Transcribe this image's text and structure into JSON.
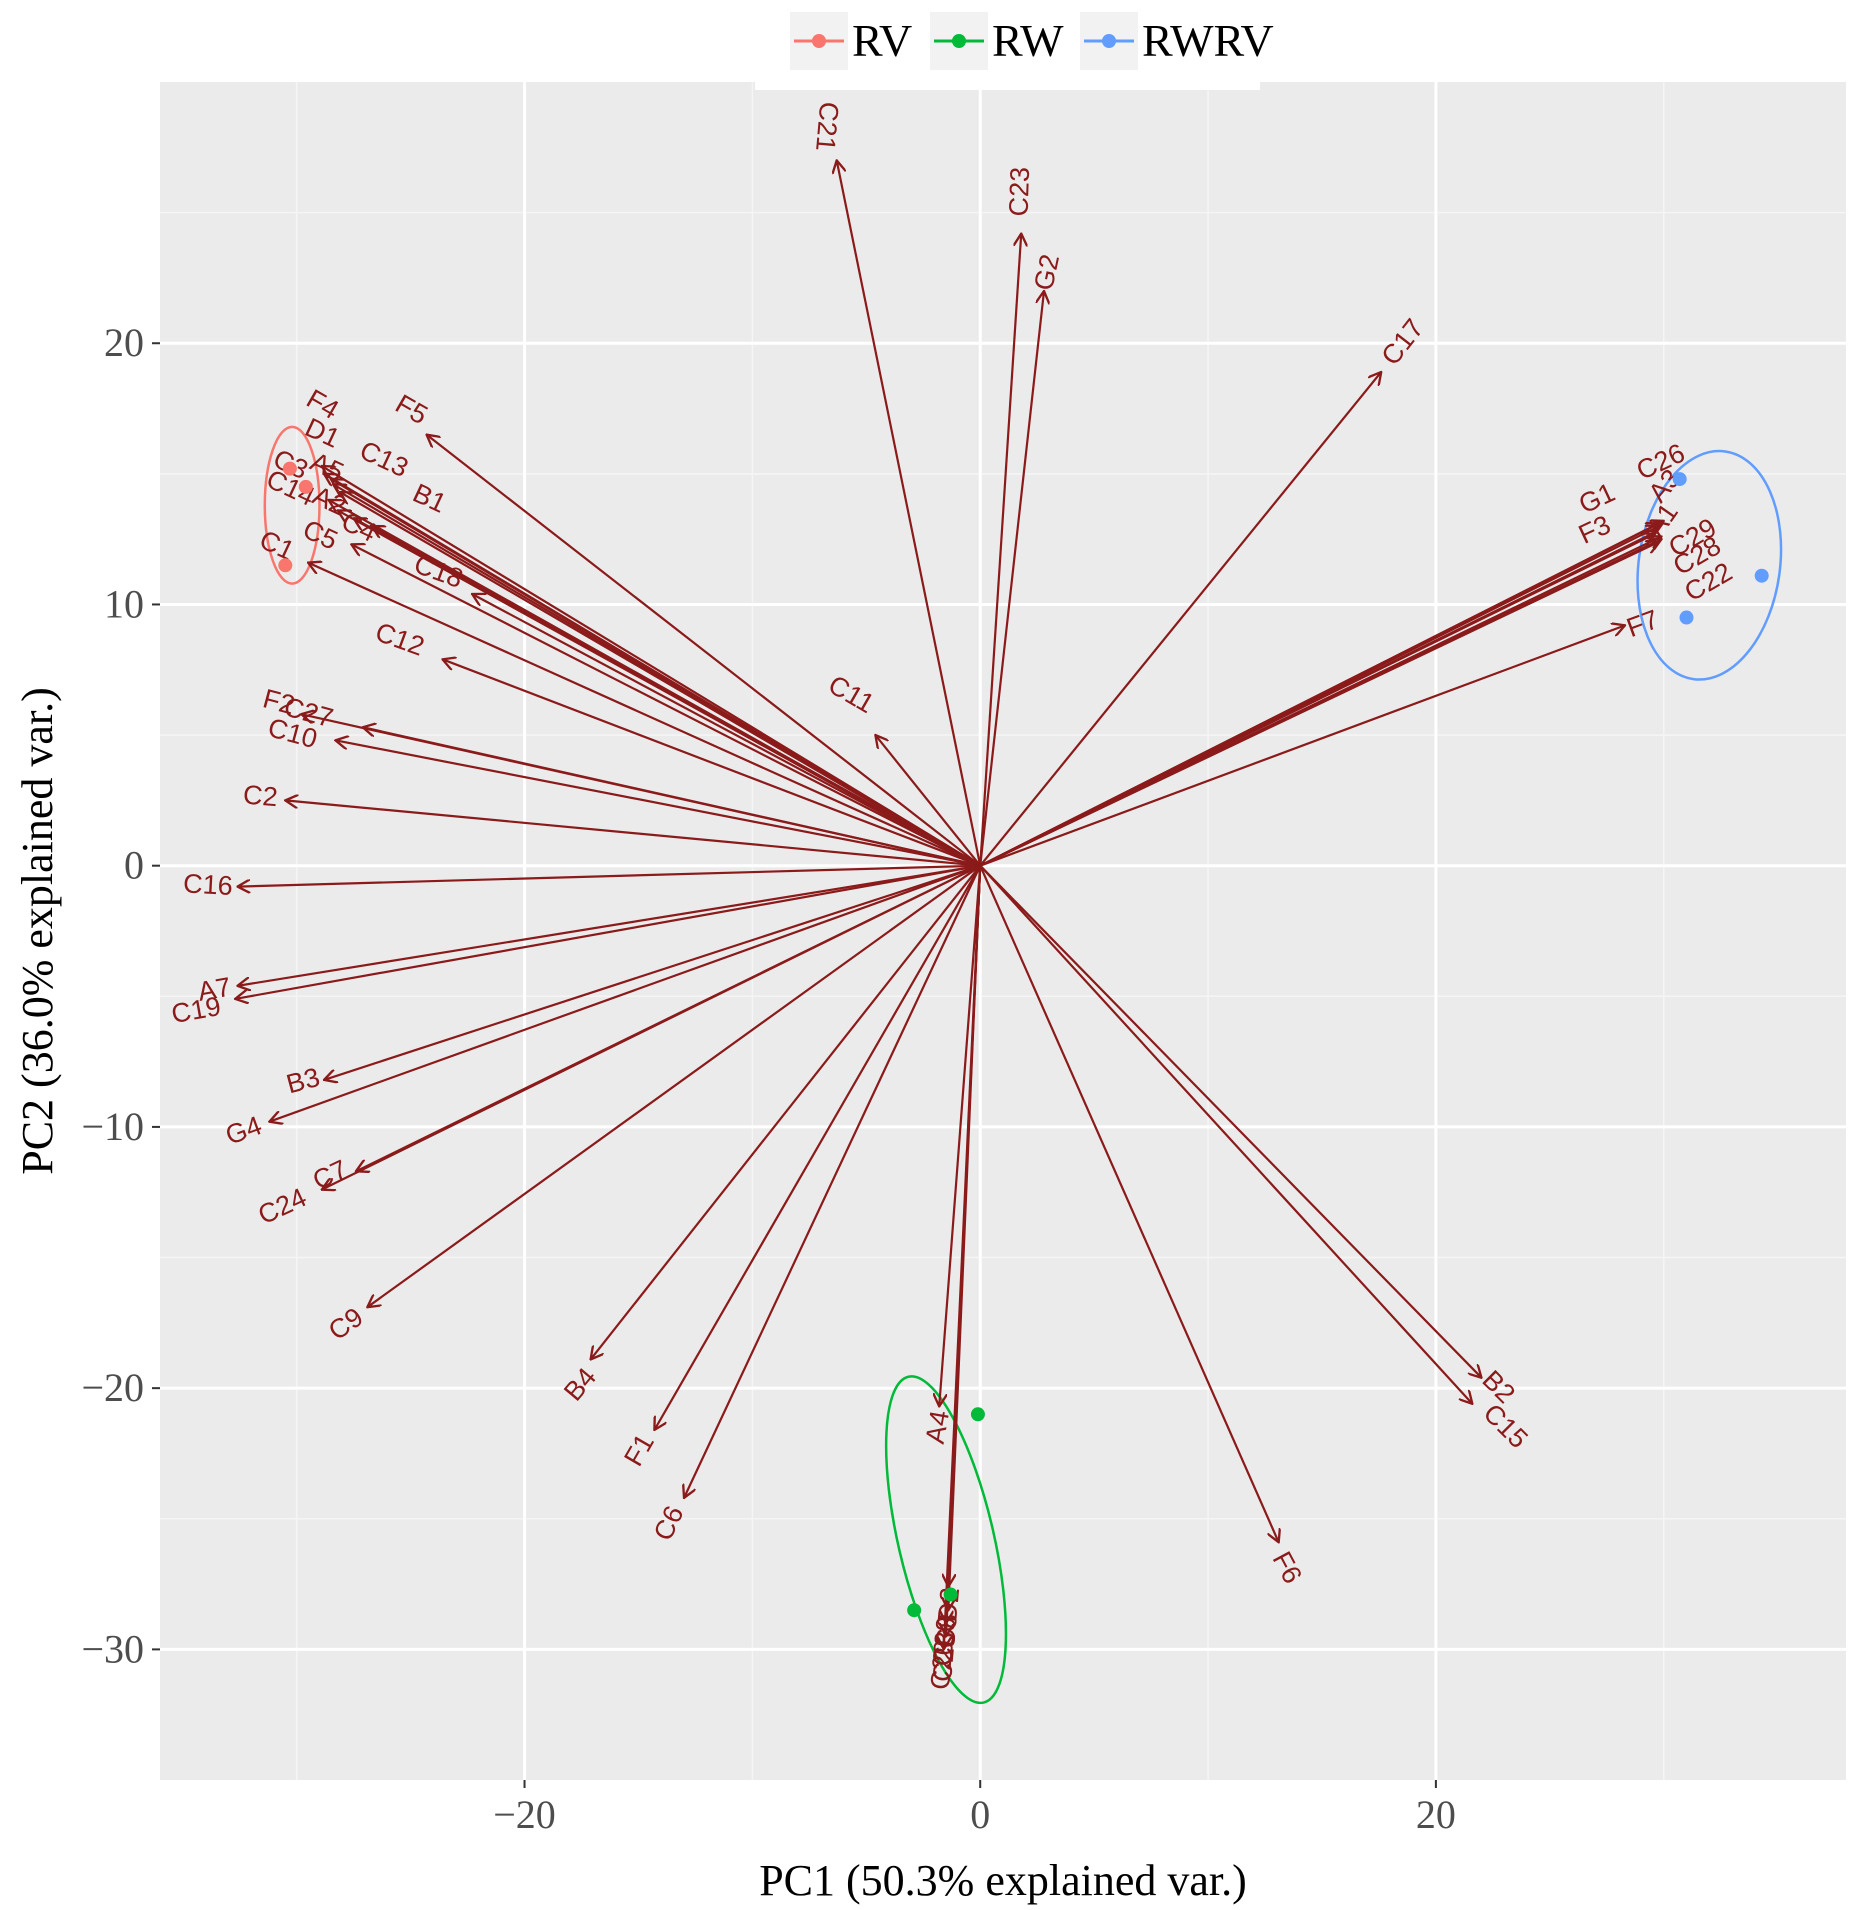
{
  "chart_data": {
    "type": "scatter",
    "subtype": "pca-biplot",
    "xlabel": "PC1 (50.3% explained var.)",
    "ylabel": "PC2 (36.0% explained var.)",
    "xlim": [
      -36,
      38
    ],
    "ylim": [
      -35,
      30
    ],
    "x_ticks": [
      -20,
      0,
      20
    ],
    "x_tick_labels": [
      "−20",
      "0",
      "20"
    ],
    "y_ticks": [
      -30,
      -20,
      -10,
      0,
      10,
      20
    ],
    "y_tick_labels": [
      "−30",
      "−20",
      "−10",
      "0",
      "10",
      "20"
    ],
    "grid": true,
    "legend_position": "top",
    "groups": [
      {
        "name": "RV",
        "color": "#F8766D",
        "points": [
          [
            -30.3,
            15.2
          ],
          [
            -30.5,
            11.5
          ],
          [
            -29.6,
            14.5
          ]
        ],
        "ellipse": {
          "cx": -30.2,
          "cy": 13.8,
          "rx": 1.2,
          "ry": 3.0,
          "angle": 0
        }
      },
      {
        "name": "RW",
        "color": "#00BA38",
        "points": [
          [
            -0.1,
            -21.0
          ],
          [
            -2.9,
            -28.5
          ],
          [
            -1.3,
            -27.9
          ]
        ],
        "ellipse": {
          "cx": -1.5,
          "cy": -25.8,
          "rx": 2.1,
          "ry": 6.4,
          "angle": -13
        }
      },
      {
        "name": "RWRV",
        "color": "#619CFF",
        "points": [
          [
            30.7,
            14.8
          ],
          [
            34.3,
            11.1
          ],
          [
            31.0,
            9.5
          ]
        ],
        "ellipse": {
          "cx": 32.0,
          "cy": 11.5,
          "rx": 3.1,
          "ry": 4.4,
          "angle": 8
        }
      }
    ],
    "arrow_color": "#8B1A1A",
    "vectors": [
      {
        "name": "C21",
        "x": -6.3,
        "y": 27.0,
        "lx": -6.8,
        "ly": 28.3,
        "rot": 95
      },
      {
        "name": "C23",
        "x": 1.8,
        "y": 24.2,
        "lx": 1.8,
        "ly": 25.8,
        "rot": -88
      },
      {
        "name": "G2",
        "x": 2.8,
        "y": 22.0,
        "lx": 3.0,
        "ly": 22.7,
        "rot": -78
      },
      {
        "name": "C17",
        "x": 17.6,
        "y": 18.9,
        "lx": 18.6,
        "ly": 20.0,
        "rot": -52
      },
      {
        "name": "F4",
        "x": -28.9,
        "y": 15.3,
        "lx": -28.9,
        "ly": 17.6,
        "rot": 30
      },
      {
        "name": "F5",
        "x": -24.3,
        "y": 16.5,
        "lx": -25.0,
        "ly": 17.4,
        "rot": 30
      },
      {
        "name": "D1",
        "x": -28.8,
        "y": 15.0,
        "lx": -28.9,
        "ly": 16.5,
        "rot": 25
      },
      {
        "name": "C3",
        "x": -28.5,
        "y": 14.8,
        "lx": -30.3,
        "ly": 15.3,
        "rot": 25
      },
      {
        "name": "A5",
        "x": -28.4,
        "y": 14.6,
        "lx": -28.7,
        "ly": 15.2,
        "rot": 25
      },
      {
        "name": "C13",
        "x": -28.1,
        "y": 14.3,
        "lx": -26.2,
        "ly": 15.5,
        "rot": 25
      },
      {
        "name": "C14",
        "x": -28.6,
        "y": 14.0,
        "lx": -30.3,
        "ly": 14.4,
        "rot": 25
      },
      {
        "name": "A2",
        "x": -28.2,
        "y": 13.6,
        "lx": -28.6,
        "ly": 13.9,
        "rot": 25
      },
      {
        "name": "B1",
        "x": -27.5,
        "y": 13.3,
        "lx": -24.2,
        "ly": 14.0,
        "rot": 25
      },
      {
        "name": "C4",
        "x": -26.7,
        "y": 13.0,
        "lx": -27.3,
        "ly": 12.9,
        "rot": 25
      },
      {
        "name": "C5",
        "x": -27.6,
        "y": 12.3,
        "lx": -29.0,
        "ly": 12.6,
        "rot": 25
      },
      {
        "name": "C1",
        "x": -29.5,
        "y": 11.6,
        "lx": -30.9,
        "ly": 12.2,
        "rot": 25
      },
      {
        "name": "C18",
        "x": -22.3,
        "y": 10.4,
        "lx": -23.8,
        "ly": 11.2,
        "rot": 20
      },
      {
        "name": "C12",
        "x": -23.6,
        "y": 7.9,
        "lx": -25.5,
        "ly": 8.6,
        "rot": 20
      },
      {
        "name": "C11",
        "x": -4.6,
        "y": 5.0,
        "lx": -5.7,
        "ly": 6.5,
        "rot": 30
      },
      {
        "name": "F2",
        "x": -29.8,
        "y": 5.8,
        "lx": -30.8,
        "ly": 6.2,
        "rot": 15
      },
      {
        "name": "C27",
        "x": -27.1,
        "y": 5.3,
        "lx": -29.5,
        "ly": 5.8,
        "rot": 15
      },
      {
        "name": "C10",
        "x": -28.3,
        "y": 4.8,
        "lx": -30.2,
        "ly": 5.0,
        "rot": 15
      },
      {
        "name": "C2",
        "x": -30.5,
        "y": 2.5,
        "lx": -31.6,
        "ly": 2.6,
        "rot": 5
      },
      {
        "name": "C16",
        "x": -32.6,
        "y": -0.8,
        "lx": -33.9,
        "ly": -0.8,
        "rot": 3
      },
      {
        "name": "A7",
        "x": -32.6,
        "y": -4.6,
        "lx": -33.6,
        "ly": -4.8,
        "rot": -10
      },
      {
        "name": "C19",
        "x": -32.7,
        "y": -5.1,
        "lx": -34.4,
        "ly": -5.6,
        "rot": -10
      },
      {
        "name": "B3",
        "x": -28.8,
        "y": -8.2,
        "lx": -29.7,
        "ly": -8.3,
        "rot": -15
      },
      {
        "name": "G4",
        "x": -31.2,
        "y": -9.8,
        "lx": -32.3,
        "ly": -10.2,
        "rot": -20
      },
      {
        "name": "C7",
        "x": -27.4,
        "y": -11.7,
        "lx": -28.5,
        "ly": -11.9,
        "rot": -25
      },
      {
        "name": "C24",
        "x": -28.9,
        "y": -12.4,
        "lx": -30.6,
        "ly": -13.1,
        "rot": -25
      },
      {
        "name": "C9",
        "x": -26.9,
        "y": -16.9,
        "lx": -27.8,
        "ly": -17.6,
        "rot": -35
      },
      {
        "name": "B4",
        "x": -17.1,
        "y": -18.9,
        "lx": -17.5,
        "ly": -19.9,
        "rot": -50
      },
      {
        "name": "F1",
        "x": -14.3,
        "y": -21.6,
        "lx": -14.9,
        "ly": -22.4,
        "rot": -60
      },
      {
        "name": "C6",
        "x": -13.0,
        "y": -24.2,
        "lx": -13.6,
        "ly": -25.2,
        "rot": -65
      },
      {
        "name": "A4",
        "x": -1.8,
        "y": -20.7,
        "lx": -1.8,
        "ly": -21.5,
        "rot": -80
      },
      {
        "name": "D2",
        "x": -1.4,
        "y": -27.6,
        "lx": -1.3,
        "ly": -28.3,
        "rot": -85
      },
      {
        "name": "C8",
        "x": -1.4,
        "y": -28.5,
        "lx": -1.4,
        "ly": -29.3,
        "rot": -85
      },
      {
        "name": "C30",
        "x": -1.5,
        "y": -29.0,
        "lx": -1.5,
        "ly": -29.7,
        "rot": -85
      },
      {
        "name": "C25",
        "x": -1.5,
        "y": -29.5,
        "lx": -1.5,
        "ly": -30.3,
        "rot": -85
      },
      {
        "name": "C20",
        "x": -1.6,
        "y": -30.0,
        "lx": -1.6,
        "ly": -30.6,
        "rot": -85
      },
      {
        "name": "F6",
        "x": 13.1,
        "y": -25.9,
        "lx": 13.4,
        "ly": -26.9,
        "rot": 62
      },
      {
        "name": "B2",
        "x": 22.0,
        "y": -19.6,
        "lx": 22.7,
        "ly": -20.0,
        "rot": 45
      },
      {
        "name": "C15",
        "x": 21.6,
        "y": -20.6,
        "lx": 23.0,
        "ly": -21.5,
        "rot": 45
      },
      {
        "name": "G1",
        "x": 29.8,
        "y": 13.0,
        "lx": 27.1,
        "ly": 14.0,
        "rot": -25
      },
      {
        "name": "C26",
        "x": 30.0,
        "y": 13.2,
        "lx": 29.9,
        "ly": 15.4,
        "rot": -25
      },
      {
        "name": "A3",
        "x": 29.8,
        "y": 13.1,
        "lx": 30.1,
        "ly": 14.5,
        "rot": -50
      },
      {
        "name": "A1",
        "x": 29.7,
        "y": 12.8,
        "lx": 30.0,
        "ly": 13.2,
        "rot": -55
      },
      {
        "name": "F3",
        "x": 29.6,
        "y": 12.7,
        "lx": 27.0,
        "ly": 12.8,
        "rot": -25
      },
      {
        "name": "C29",
        "x": 29.9,
        "y": 12.6,
        "lx": 31.3,
        "ly": 12.5,
        "rot": -30
      },
      {
        "name": "C28",
        "x": 29.9,
        "y": 12.5,
        "lx": 31.5,
        "ly": 11.8,
        "rot": -30
      },
      {
        "name": "C22",
        "x": 29.8,
        "y": 12.4,
        "lx": 32.0,
        "ly": 10.8,
        "rot": -30
      },
      {
        "name": "F7",
        "x": 28.3,
        "y": 9.2,
        "lx": 29.1,
        "ly": 9.2,
        "rot": -20
      }
    ]
  }
}
